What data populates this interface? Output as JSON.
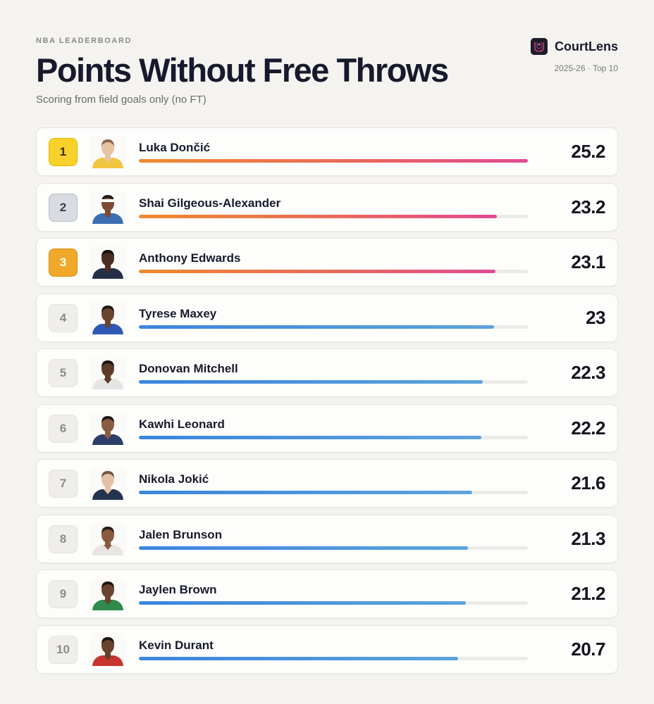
{
  "header": {
    "kicker": "NBA LEADERBOARD",
    "title": "Points Without Free Throws",
    "subtitle": "Scoring from field goals only (no FT)",
    "brand": "CourtLens",
    "meta": "2025-26 · Top 10"
  },
  "colors": {
    "gold": "#f8d12a",
    "silver": "#d9dce2",
    "bronze": "#f0a82a",
    "warm_bar": [
      "#ee8a2e",
      "#e04a92"
    ],
    "cool_bar": [
      "#3a85dc",
      "#5da3db"
    ]
  },
  "chart_data": {
    "type": "bar",
    "orientation": "horizontal",
    "title": "Points Without Free Throws",
    "subtitle": "Scoring from field goals only (no FT)",
    "categories": [
      "Luka Dončić",
      "Shai Gilgeous-Alexander",
      "Anthony Edwards",
      "Tyrese Maxey",
      "Donovan Mitchell",
      "Kawhi Leonard",
      "Nikola Jokić",
      "Jalen Brunson",
      "Jaylen Brown",
      "Kevin Durant"
    ],
    "values": [
      25.2,
      23.2,
      23.1,
      23,
      22.3,
      22.2,
      21.6,
      21.3,
      21.2,
      20.7
    ],
    "value_labels": [
      "25.2",
      "23.2",
      "23.1",
      "23",
      "22.3",
      "22.2",
      "21.6",
      "21.3",
      "21.2",
      "20.7"
    ],
    "ranks": [
      "1",
      "2",
      "3",
      "4",
      "5",
      "6",
      "7",
      "8",
      "9",
      "10"
    ],
    "xlim": [
      0,
      25.2
    ],
    "grid": false,
    "legend": "none"
  },
  "players": [
    {
      "skin": "#e7c3a4",
      "hair": "#8a6a4a",
      "jersey": "#f2c541"
    },
    {
      "skin": "#7a4c33",
      "hair": "#1e1a18",
      "jersey": "#3b6fb0",
      "band": "#ffffff"
    },
    {
      "skin": "#4a2f22",
      "hair": "#141010",
      "jersey": "#233047"
    },
    {
      "skin": "#6b4430",
      "hair": "#1c1614",
      "jersey": "#2e58b4"
    },
    {
      "skin": "#5e3b2a",
      "hair": "#1a1412",
      "jersey": "#e7e4e4"
    },
    {
      "skin": "#8a5b40",
      "hair": "#1e1714",
      "jersey": "#2d3e6a"
    },
    {
      "skin": "#e5c0a2",
      "hair": "#6d5642",
      "jersey": "#24344f"
    },
    {
      "skin": "#8a5a3e",
      "hair": "#2a1d17",
      "jersey": "#e8e4e2"
    },
    {
      "skin": "#6a432f",
      "hair": "#1d1613",
      "jersey": "#2f8b4d"
    },
    {
      "skin": "#6a412c",
      "hair": "#1b1411",
      "jersey": "#c8352f"
    }
  ]
}
